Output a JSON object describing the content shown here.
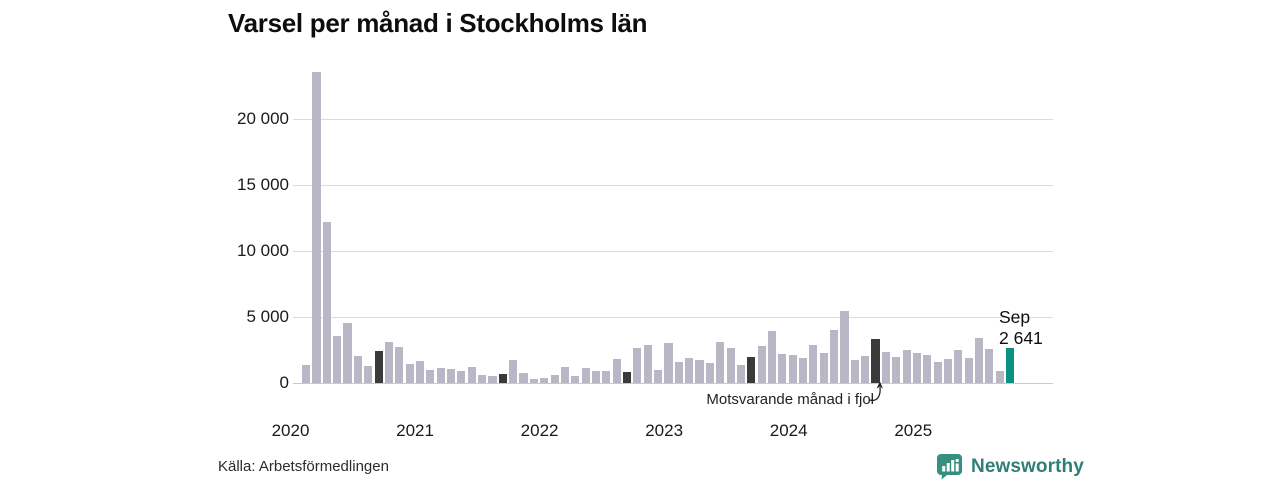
{
  "header": {
    "title": "Varsel per månad i Stockholms län"
  },
  "footer": {
    "source": "Källa: Arbetsförmedlingen",
    "brand": "Newsworthy",
    "brand_icon": "bar-chart-badge-icon",
    "brand_color": "#2f7f77",
    "badge_color": "#35907f"
  },
  "chart_data": {
    "type": "bar",
    "title": "Varsel per månad i Stockholms län",
    "xlabel": "",
    "ylabel": "",
    "ylim": [
      0,
      24000
    ],
    "grid": "horizontal",
    "legend_position": "none",
    "yticks": [
      {
        "value": 0,
        "label": "0"
      },
      {
        "value": 5000,
        "label": "5 000"
      },
      {
        "value": 10000,
        "label": "10 000"
      },
      {
        "value": 15000,
        "label": "15 000"
      },
      {
        "value": 20000,
        "label": "20 000"
      }
    ],
    "x_year_labels": [
      "2020",
      "2021",
      "2022",
      "2023",
      "2024",
      "2025"
    ],
    "annotation": {
      "text": "Motsvarande månad i fjol",
      "points_to": "dark highlighted bar (late 2024)"
    },
    "last_label": {
      "month": "Sep",
      "value": "2 641"
    },
    "colors": {
      "bar": "#b9b6c5",
      "bar_prev_year": "#3a3a3a",
      "bar_current": "#0a9184",
      "gridline": "#dcdcdc"
    },
    "series": [
      {
        "month": "2020-01",
        "value": 1400,
        "kind": "normal"
      },
      {
        "month": "2020-02",
        "value": 23600,
        "kind": "normal"
      },
      {
        "month": "2020-03",
        "value": 12180,
        "kind": "normal"
      },
      {
        "month": "2020-04",
        "value": 3570,
        "kind": "normal"
      },
      {
        "month": "2020-05",
        "value": 4560,
        "kind": "normal"
      },
      {
        "month": "2020-06",
        "value": 2030,
        "kind": "normal"
      },
      {
        "month": "2020-07",
        "value": 1290,
        "kind": "normal"
      },
      {
        "month": "2020-08",
        "value": 2430,
        "kind": "prev-year-month"
      },
      {
        "month": "2020-09",
        "value": 3110,
        "kind": "normal"
      },
      {
        "month": "2020-10",
        "value": 2730,
        "kind": "normal"
      },
      {
        "month": "2020-11",
        "value": 1440,
        "kind": "normal"
      },
      {
        "month": "2020-12",
        "value": 1650,
        "kind": "normal"
      },
      {
        "month": "2021-01",
        "value": 1020,
        "kind": "normal"
      },
      {
        "month": "2021-02",
        "value": 1170,
        "kind": "normal"
      },
      {
        "month": "2021-03",
        "value": 1040,
        "kind": "normal"
      },
      {
        "month": "2021-04",
        "value": 890,
        "kind": "normal"
      },
      {
        "month": "2021-05",
        "value": 1220,
        "kind": "normal"
      },
      {
        "month": "2021-06",
        "value": 610,
        "kind": "normal"
      },
      {
        "month": "2021-07",
        "value": 530,
        "kind": "normal"
      },
      {
        "month": "2021-08",
        "value": 710,
        "kind": "prev-year-month"
      },
      {
        "month": "2021-09",
        "value": 1720,
        "kind": "normal"
      },
      {
        "month": "2021-10",
        "value": 760,
        "kind": "normal"
      },
      {
        "month": "2021-11",
        "value": 280,
        "kind": "normal"
      },
      {
        "month": "2021-12",
        "value": 350,
        "kind": "normal"
      },
      {
        "month": "2022-01",
        "value": 600,
        "kind": "normal"
      },
      {
        "month": "2022-02",
        "value": 1210,
        "kind": "normal"
      },
      {
        "month": "2022-03",
        "value": 530,
        "kind": "normal"
      },
      {
        "month": "2022-04",
        "value": 1140,
        "kind": "normal"
      },
      {
        "month": "2022-05",
        "value": 910,
        "kind": "normal"
      },
      {
        "month": "2022-06",
        "value": 910,
        "kind": "normal"
      },
      {
        "month": "2022-07",
        "value": 1820,
        "kind": "normal"
      },
      {
        "month": "2022-08",
        "value": 860,
        "kind": "prev-year-month"
      },
      {
        "month": "2022-09",
        "value": 2630,
        "kind": "normal"
      },
      {
        "month": "2022-10",
        "value": 2890,
        "kind": "normal"
      },
      {
        "month": "2022-11",
        "value": 990,
        "kind": "normal"
      },
      {
        "month": "2022-12",
        "value": 3010,
        "kind": "normal"
      },
      {
        "month": "2023-01",
        "value": 1570,
        "kind": "normal"
      },
      {
        "month": "2023-02",
        "value": 1920,
        "kind": "normal"
      },
      {
        "month": "2023-03",
        "value": 1750,
        "kind": "normal"
      },
      {
        "month": "2023-04",
        "value": 1500,
        "kind": "normal"
      },
      {
        "month": "2023-05",
        "value": 3090,
        "kind": "normal"
      },
      {
        "month": "2023-06",
        "value": 2630,
        "kind": "normal"
      },
      {
        "month": "2023-07",
        "value": 1370,
        "kind": "normal"
      },
      {
        "month": "2023-08",
        "value": 2000,
        "kind": "prev-year-month"
      },
      {
        "month": "2023-09",
        "value": 2830,
        "kind": "normal"
      },
      {
        "month": "2023-10",
        "value": 3920,
        "kind": "normal"
      },
      {
        "month": "2023-11",
        "value": 2200,
        "kind": "normal"
      },
      {
        "month": "2023-12",
        "value": 2150,
        "kind": "normal"
      },
      {
        "month": "2024-01",
        "value": 1900,
        "kind": "normal"
      },
      {
        "month": "2024-02",
        "value": 2920,
        "kind": "normal"
      },
      {
        "month": "2024-03",
        "value": 2280,
        "kind": "normal"
      },
      {
        "month": "2024-04",
        "value": 4000,
        "kind": "normal"
      },
      {
        "month": "2024-05",
        "value": 5440,
        "kind": "normal"
      },
      {
        "month": "2024-06",
        "value": 1720,
        "kind": "normal"
      },
      {
        "month": "2024-07",
        "value": 2050,
        "kind": "normal"
      },
      {
        "month": "2024-08",
        "value": 3300,
        "kind": "prev-year-month"
      },
      {
        "month": "2024-09",
        "value": 2350,
        "kind": "normal"
      },
      {
        "month": "2024-10",
        "value": 1970,
        "kind": "normal"
      },
      {
        "month": "2024-11",
        "value": 2540,
        "kind": "normal"
      },
      {
        "month": "2024-12",
        "value": 2300,
        "kind": "normal"
      },
      {
        "month": "2025-01",
        "value": 2100,
        "kind": "normal"
      },
      {
        "month": "2025-02",
        "value": 1590,
        "kind": "normal"
      },
      {
        "month": "2025-03",
        "value": 1850,
        "kind": "normal"
      },
      {
        "month": "2025-04",
        "value": 2480,
        "kind": "normal"
      },
      {
        "month": "2025-05",
        "value": 1930,
        "kind": "normal"
      },
      {
        "month": "2025-06",
        "value": 3450,
        "kind": "normal"
      },
      {
        "month": "2025-07",
        "value": 2610,
        "kind": "normal"
      },
      {
        "month": "2025-08",
        "value": 880,
        "kind": "normal"
      },
      {
        "month": "2025-09",
        "value": 2641,
        "kind": "latest"
      }
    ]
  }
}
